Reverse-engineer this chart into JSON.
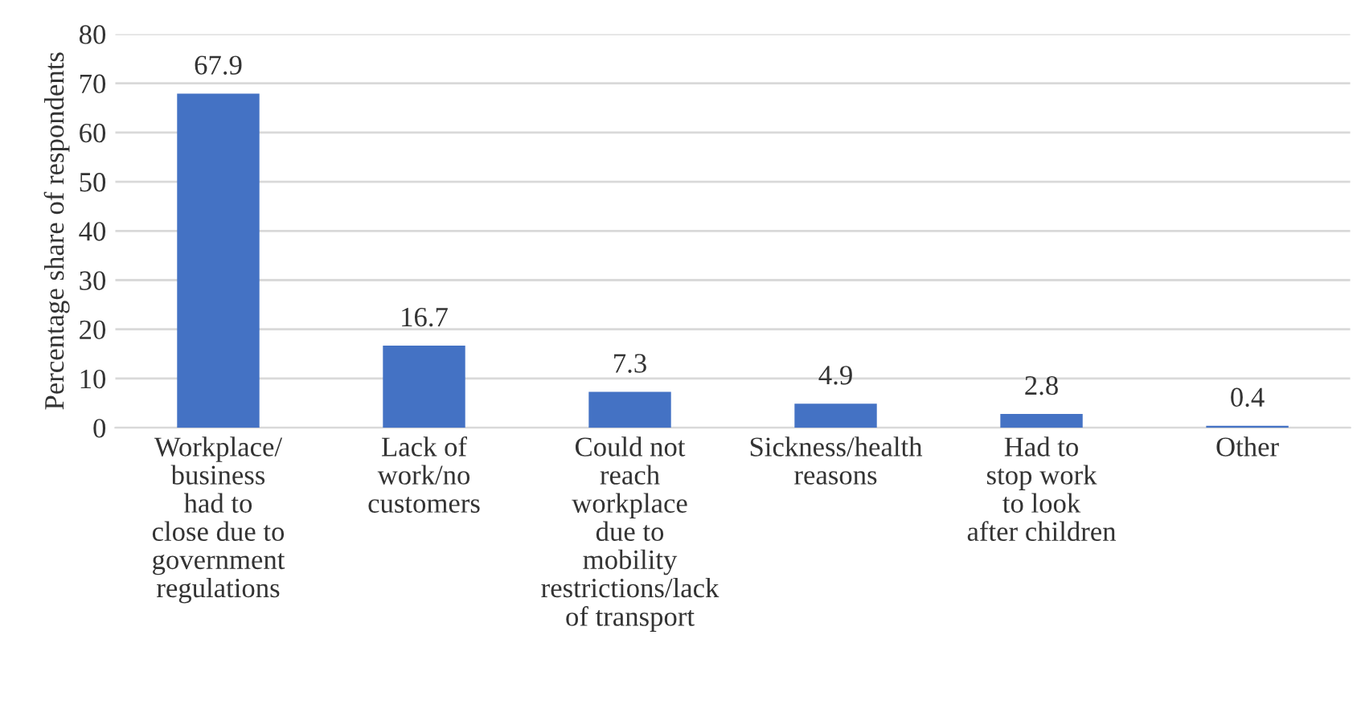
{
  "chart_data": {
    "type": "bar",
    "ylabel": "Percentage share of respondents",
    "categories": [
      "Workplace/\nbusiness\nhad to\nclose due to\ngovernment\nregulations",
      "Lack of\nwork/no\ncustomers",
      "Could not\nreach\nworkplace\ndue to\nmobility\nrestrictions/lack\nof transport",
      "Sickness/health\nreasons",
      "Had to\nstop work\nto look\nafter children",
      "Other"
    ],
    "values": [
      67.9,
      16.7,
      7.3,
      4.9,
      2.8,
      0.4
    ],
    "color": "#4472c4",
    "ylim": [
      0,
      80
    ],
    "yticks": [
      0,
      10,
      20,
      30,
      40,
      50,
      60,
      70,
      80
    ],
    "grid": "y",
    "data_labels": true
  }
}
